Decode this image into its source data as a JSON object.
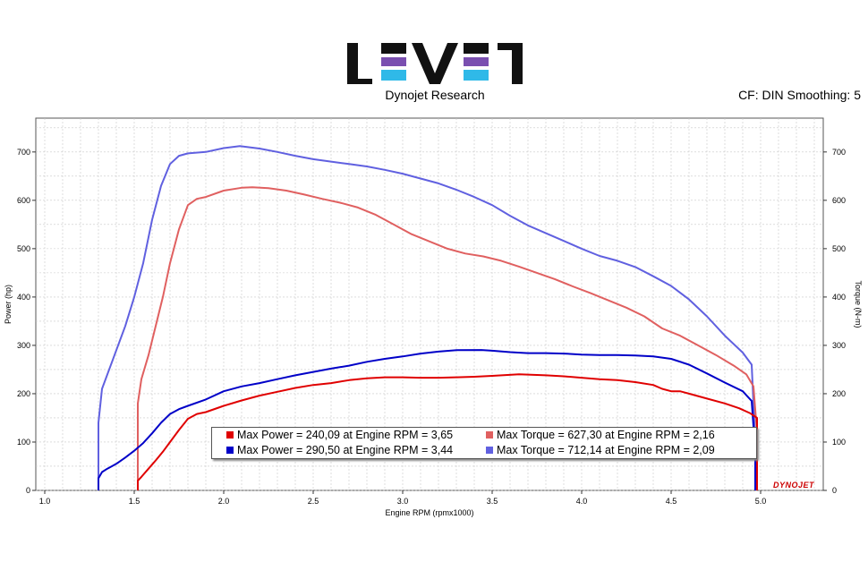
{
  "header": {
    "logo_text": "LEVEL",
    "subtitle": "Dynojet Research",
    "cf_label": "CF: DIN Smoothing: 5"
  },
  "brand_mark": "DYNOJET",
  "colors": {
    "power_1": "#e00000",
    "power_2": "#0000c8",
    "torque_1": "#e06060",
    "torque_2": "#6060e0"
  },
  "chart_data": {
    "type": "line",
    "xlabel": "Engine RPM (rpmx1000)",
    "ylabel_left": "Power (hp)",
    "ylabel_right": "Torque (N-m)",
    "xlim": [
      0.95,
      5.35
    ],
    "ylim": [
      0,
      770
    ],
    "x_ticks": [
      "1.0",
      "1.5",
      "2.0",
      "2.5",
      "3.0",
      "3.5",
      "4.0",
      "4.5",
      "5.0"
    ],
    "y_ticks": [
      "0",
      "100",
      "200",
      "300",
      "400",
      "500",
      "600",
      "700"
    ],
    "grid": true,
    "series": [
      {
        "key": "torque_2",
        "x": [
          1.3,
          1.3,
          1.32,
          1.35,
          1.4,
          1.45,
          1.5,
          1.55,
          1.6,
          1.65,
          1.7,
          1.75,
          1.8,
          1.9,
          2.0,
          2.09,
          2.2,
          2.3,
          2.4,
          2.5,
          2.6,
          2.7,
          2.8,
          2.9,
          3.0,
          3.1,
          3.2,
          3.3,
          3.4,
          3.5,
          3.6,
          3.7,
          3.8,
          3.9,
          4.0,
          4.1,
          4.2,
          4.3,
          4.4,
          4.5,
          4.6,
          4.7,
          4.8,
          4.9,
          4.95,
          4.97,
          4.97
        ],
        "y": [
          0,
          140,
          210,
          240,
          290,
          340,
          400,
          470,
          560,
          630,
          675,
          692,
          697,
          700,
          708,
          712,
          707,
          700,
          692,
          685,
          680,
          675,
          670,
          663,
          655,
          645,
          635,
          622,
          607,
          590,
          568,
          548,
          532,
          516,
          500,
          485,
          475,
          462,
          443,
          423,
          395,
          360,
          320,
          285,
          260,
          100,
          0
        ]
      },
      {
        "key": "torque_1",
        "x": [
          1.52,
          1.52,
          1.54,
          1.58,
          1.62,
          1.66,
          1.7,
          1.75,
          1.8,
          1.85,
          1.9,
          2.0,
          2.1,
          2.16,
          2.25,
          2.35,
          2.45,
          2.55,
          2.65,
          2.75,
          2.85,
          2.95,
          3.05,
          3.15,
          3.25,
          3.35,
          3.45,
          3.55,
          3.65,
          3.75,
          3.85,
          3.95,
          4.05,
          4.15,
          4.25,
          4.35,
          4.45,
          4.55,
          4.65,
          4.75,
          4.85,
          4.92,
          4.96,
          4.98,
          4.98
        ],
        "y": [
          0,
          180,
          230,
          280,
          340,
          400,
          470,
          540,
          590,
          603,
          607,
          620,
          626,
          627,
          625,
          620,
          612,
          603,
          595,
          585,
          570,
          550,
          530,
          515,
          500,
          490,
          484,
          475,
          463,
          450,
          437,
          422,
          408,
          393,
          378,
          360,
          335,
          320,
          300,
          280,
          258,
          240,
          215,
          120,
          0
        ]
      },
      {
        "key": "power_2",
        "x": [
          1.3,
          1.3,
          1.32,
          1.35,
          1.4,
          1.45,
          1.5,
          1.55,
          1.6,
          1.65,
          1.7,
          1.75,
          1.8,
          1.9,
          2.0,
          2.1,
          2.2,
          2.3,
          2.4,
          2.5,
          2.6,
          2.7,
          2.8,
          2.9,
          3.0,
          3.1,
          3.2,
          3.3,
          3.44,
          3.5,
          3.6,
          3.7,
          3.8,
          3.9,
          4.0,
          4.1,
          4.2,
          4.3,
          4.4,
          4.5,
          4.6,
          4.7,
          4.8,
          4.9,
          4.95,
          4.97,
          4.97
        ],
        "y": [
          0,
          25,
          38,
          45,
          55,
          68,
          82,
          98,
          118,
          140,
          158,
          168,
          175,
          188,
          205,
          215,
          222,
          230,
          238,
          245,
          252,
          258,
          266,
          272,
          277,
          283,
          287,
          290,
          290.5,
          289,
          286,
          284,
          284,
          283,
          281,
          280,
          280,
          279,
          277,
          272,
          260,
          242,
          223,
          205,
          185,
          80,
          0
        ]
      },
      {
        "key": "power_1",
        "x": [
          1.52,
          1.52,
          1.54,
          1.58,
          1.62,
          1.66,
          1.7,
          1.75,
          1.8,
          1.85,
          1.9,
          2.0,
          2.1,
          2.2,
          2.3,
          2.4,
          2.5,
          2.6,
          2.7,
          2.8,
          2.9,
          3.0,
          3.1,
          3.2,
          3.3,
          3.4,
          3.5,
          3.65,
          3.8,
          3.9,
          4.0,
          4.1,
          4.2,
          4.3,
          4.4,
          4.45,
          4.5,
          4.55,
          4.6,
          4.7,
          4.8,
          4.88,
          4.94,
          4.98,
          4.98
        ],
        "y": [
          0,
          20,
          28,
          45,
          62,
          80,
          100,
          125,
          148,
          158,
          162,
          175,
          186,
          196,
          204,
          212,
          218,
          222,
          228,
          232,
          234,
          234,
          233,
          233,
          234,
          235,
          237,
          240.09,
          238,
          236,
          233,
          230,
          228,
          224,
          218,
          210,
          205,
          205,
          200,
          190,
          180,
          170,
          160,
          150,
          0
        ]
      }
    ],
    "legend": [
      {
        "key": "power_1",
        "text": "Max Power = 240,09 at Engine RPM = 3,65"
      },
      {
        "key": "torque_1",
        "text": "Max Torque = 627,30 at Engine RPM = 2,16"
      },
      {
        "key": "power_2",
        "text": "Max Power = 290,50 at Engine RPM = 3,44"
      },
      {
        "key": "torque_2",
        "text": "Max Torque = 712,14 at Engine RPM = 2,09"
      }
    ]
  }
}
